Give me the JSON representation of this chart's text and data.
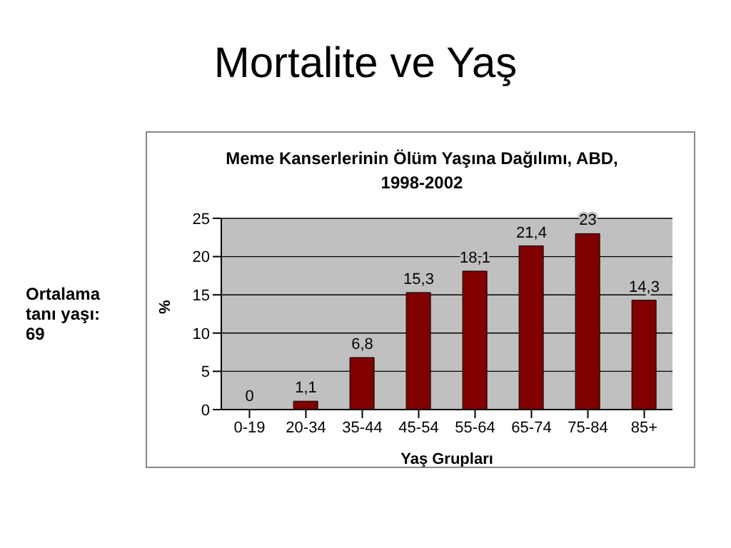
{
  "chart_data": {
    "type": "bar",
    "title": "Mortalite ve Yaş",
    "subtitle": "Meme Kanserlerinin Ölüm Yaşına Dağılımı, ABD, 1998-2002",
    "xlabel": "Yaş Grupları",
    "ylabel": "%",
    "annotations": [
      "Ortalama tanı yaşı: 69"
    ],
    "categories": [
      "0-19",
      "20-34",
      "35-44",
      "45-54",
      "55-64",
      "65-74",
      "75-84",
      "85+"
    ],
    "values": [
      0,
      1.1,
      6.8,
      15.3,
      18.1,
      21.4,
      23,
      14.3
    ],
    "value_labels": [
      "0",
      "1,1",
      "6,8",
      "15,3",
      "18,1",
      "21,4",
      "23",
      "14,3"
    ],
    "color": "#800000",
    "ylim": [
      0,
      25
    ],
    "yticks": [
      0,
      5,
      10,
      15,
      20,
      25
    ],
    "grid": "y",
    "legend": false
  }
}
